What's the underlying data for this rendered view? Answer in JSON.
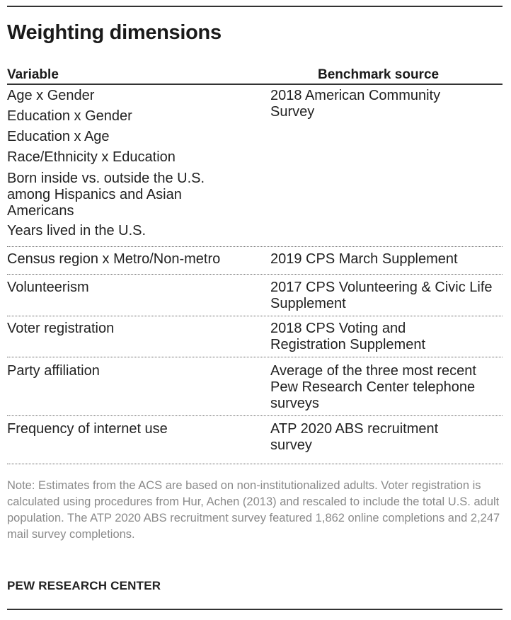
{
  "title": "Weighting dimensions",
  "table": {
    "headers": {
      "variable": "Variable",
      "benchmark": "Benchmark source"
    },
    "group1": {
      "variables": [
        "Age x Gender",
        "Education x Gender",
        "Education x Age",
        "Race/Ethnicity x Education",
        "Born inside vs. outside the U.S. among Hispanics and Asian Americans",
        "Years lived in the U.S."
      ],
      "source": "2018 American Community Survey"
    },
    "rows": [
      {
        "variable": "Census region x Metro/Non-metro",
        "source": "2019 CPS March Supplement"
      },
      {
        "variable": "Volunteerism",
        "source": "2017 CPS Volunteering & Civic Life Supplement"
      },
      {
        "variable": "Voter registration",
        "source": "2018 CPS Voting and Registration Supplement"
      },
      {
        "variable": "Party affiliation",
        "source": "Average of the three most recent Pew Research Center telephone surveys"
      },
      {
        "variable": "Frequency of internet use",
        "source": "ATP 2020 ABS recruitment survey"
      }
    ]
  },
  "note": "Note: Estimates from the ACS are based on non-institutionalized adults. Voter registration is calculated using procedures from Hur, Achen (2013) and rescaled to include the total U.S. adult population. The ATP 2020 ABS recruitment survey featured 1,862 online completions and 2,247 mail survey completions.",
  "footer": "PEW RESEARCH CENTER"
}
